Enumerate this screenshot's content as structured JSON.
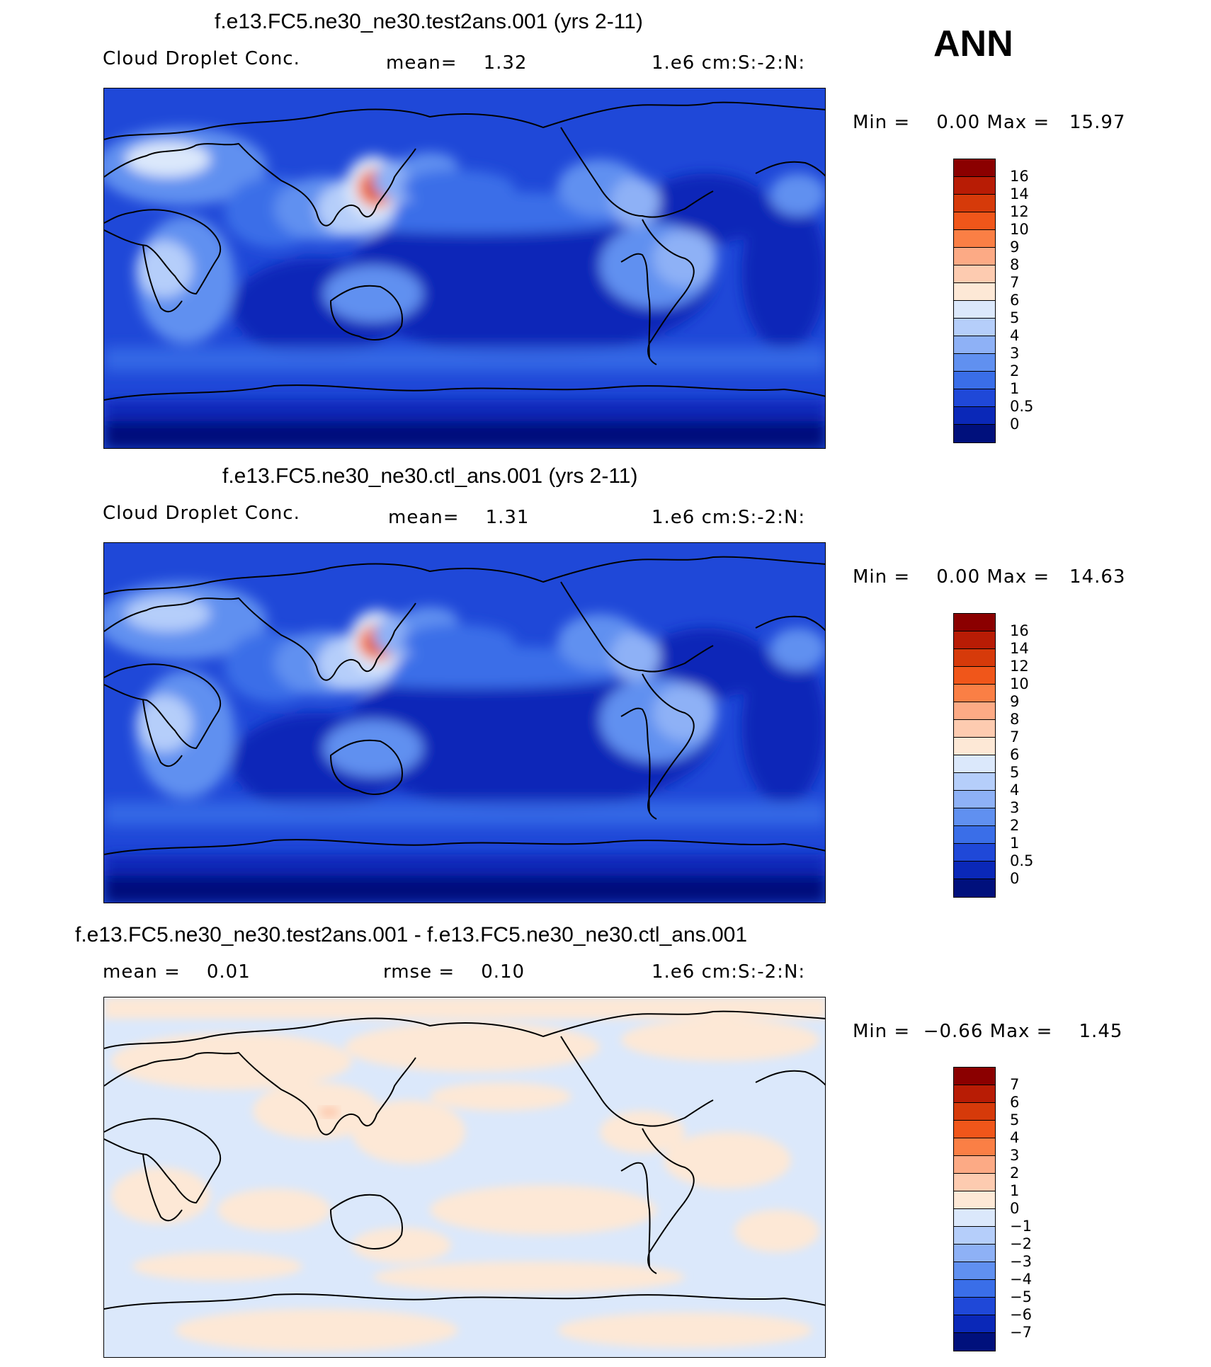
{
  "season": "ANN",
  "panels": [
    {
      "title": "f.e13.FC5.ne30_ne30.test2ans.001 (yrs 2-11)",
      "variable": "Cloud Droplet Conc.",
      "stat1": "mean=    1.32",
      "units": "1.e6 cm:S:-2:N:",
      "minmax": "Min =    0.00 Max =   15.97",
      "kind": "field",
      "colorbar_labels": [
        "16",
        "14",
        "12",
        "10",
        "9",
        "8",
        "7",
        "6",
        "5",
        "4",
        "3",
        "2",
        "1",
        "0.5",
        "0"
      ],
      "colorbar_colors": [
        "#8b0000",
        "#b81c05",
        "#d63a0a",
        "#f0561a",
        "#fa7f45",
        "#fcaa85",
        "#fdcbb0",
        "#fde8d6",
        "#dbe8fb",
        "#b5cefa",
        "#8eb1f6",
        "#6090f0",
        "#3a6ee8",
        "#1f48d8",
        "#0a28b8",
        "#00107c"
      ]
    },
    {
      "title": "f.e13.FC5.ne30_ne30.ctl_ans.001 (yrs 2-11)",
      "variable": "Cloud Droplet Conc.",
      "stat1": "mean=    1.31",
      "units": "1.e6 cm:S:-2:N:",
      "minmax": "Min =    0.00 Max =   14.63",
      "kind": "field",
      "colorbar_labels": [
        "16",
        "14",
        "12",
        "10",
        "9",
        "8",
        "7",
        "6",
        "5",
        "4",
        "3",
        "2",
        "1",
        "0.5",
        "0"
      ],
      "colorbar_colors": [
        "#8b0000",
        "#b81c05",
        "#d63a0a",
        "#f0561a",
        "#fa7f45",
        "#fcaa85",
        "#fdcbb0",
        "#fde8d6",
        "#dbe8fb",
        "#b5cefa",
        "#8eb1f6",
        "#6090f0",
        "#3a6ee8",
        "#1f48d8",
        "#0a28b8",
        "#00107c"
      ]
    },
    {
      "title": "f.e13.FC5.ne30_ne30.test2ans.001 - f.e13.FC5.ne30_ne30.ctl_ans.001",
      "variable": "mean =    0.01",
      "stat1": "rmse =    0.10",
      "units": "1.e6 cm:S:-2:N:",
      "minmax": "Min =  −0.66 Max =    1.45",
      "kind": "diff",
      "colorbar_labels": [
        "7",
        "6",
        "5",
        "4",
        "3",
        "2",
        "1",
        "0",
        "−1",
        "−2",
        "−3",
        "−4",
        "−5",
        "−6",
        "−7"
      ],
      "colorbar_colors": [
        "#8b0000",
        "#b81c05",
        "#d63a0a",
        "#f0561a",
        "#fa7f45",
        "#fcaa85",
        "#fdcbb0",
        "#fde8d6",
        "#dbe8fb",
        "#b5cefa",
        "#8eb1f6",
        "#6090f0",
        "#3a6ee8",
        "#1f48d8",
        "#0a28b8",
        "#00107c"
      ]
    }
  ]
}
